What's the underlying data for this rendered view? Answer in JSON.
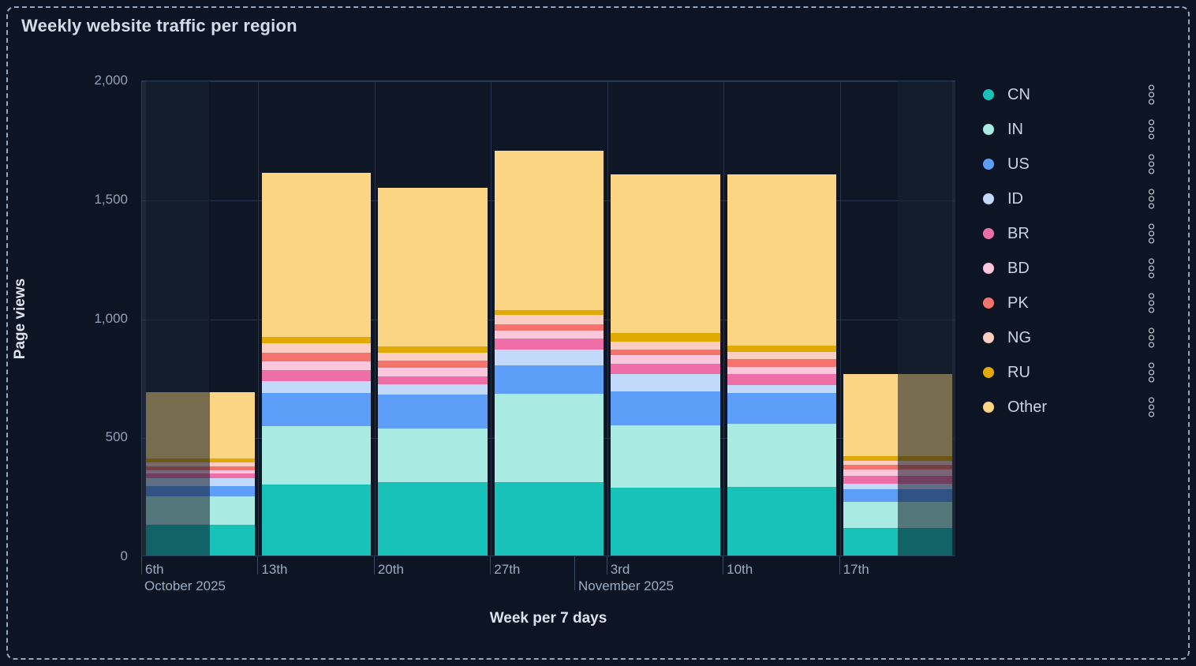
{
  "title": "Weekly website traffic per region",
  "y_axis": {
    "title": "Page views",
    "ticks": [
      {
        "label": "0",
        "value": 0
      },
      {
        "label": "500",
        "value": 500
      },
      {
        "label": "1,000",
        "value": 1000
      },
      {
        "label": "1,500",
        "value": 1500
      },
      {
        "label": "2,000",
        "value": 2000
      }
    ]
  },
  "x_axis": {
    "title": "Week per 7 days",
    "week_labels": [
      "6th",
      "13th",
      "20th",
      "27th",
      "3rd",
      "10th",
      "17th"
    ],
    "month_labels": [
      "October 2025",
      "November 2025"
    ]
  },
  "legend": {
    "menu_icon": "kebab-menu-icon",
    "dot_icon": "series-color-dot-icon"
  },
  "chart_data": {
    "type": "bar",
    "stacked": true,
    "title": "Weekly website traffic per region",
    "xlabel": "Week per 7 days",
    "ylabel": "Page views",
    "ylim": [
      0,
      2000
    ],
    "grid": true,
    "legend_position": "right",
    "categories": [
      "6th October 2025",
      "13th October 2025",
      "20th October 2025",
      "27th October 2025",
      "3rd November 2025",
      "10th November 2025",
      "17th November 2025"
    ],
    "series": [
      {
        "name": "CN",
        "color": "#19c2b8",
        "values": [
          130,
          300,
          308,
          310,
          285,
          288,
          115
        ]
      },
      {
        "name": "IN",
        "color": "#a9ebe3",
        "values": [
          120,
          245,
          229,
          371,
          263,
          269,
          113
        ]
      },
      {
        "name": "US",
        "color": "#5c9ef8",
        "values": [
          42,
          140,
          141,
          120,
          144,
          130,
          52
        ]
      },
      {
        "name": "ID",
        "color": "#c3d9fa",
        "values": [
          33,
          52,
          45,
          68,
          72,
          33,
          22
        ]
      },
      {
        "name": "BR",
        "color": "#ee6fa8",
        "values": [
          22,
          45,
          33,
          47,
          44,
          44,
          33
        ]
      },
      {
        "name": "BD",
        "color": "#fac7dd",
        "values": [
          11,
          38,
          36,
          33,
          37,
          33,
          27
        ]
      },
      {
        "name": "PK",
        "color": "#f4736c",
        "values": [
          19,
          37,
          31,
          25,
          24,
          33,
          22
        ]
      },
      {
        "name": "NG",
        "color": "#fccdc2",
        "values": [
          15,
          38,
          33,
          41,
          34,
          28,
          15
        ]
      },
      {
        "name": "RU",
        "color": "#e0a904",
        "values": [
          19,
          28,
          27,
          20,
          35,
          28,
          22
        ]
      },
      {
        "name": "Other",
        "color": "#fbd583",
        "values": [
          277,
          690,
          667,
          673,
          670,
          722,
          343
        ]
      }
    ],
    "totals": [
      688,
      1613,
      1550,
      1708,
      1608,
      1608,
      764
    ]
  }
}
